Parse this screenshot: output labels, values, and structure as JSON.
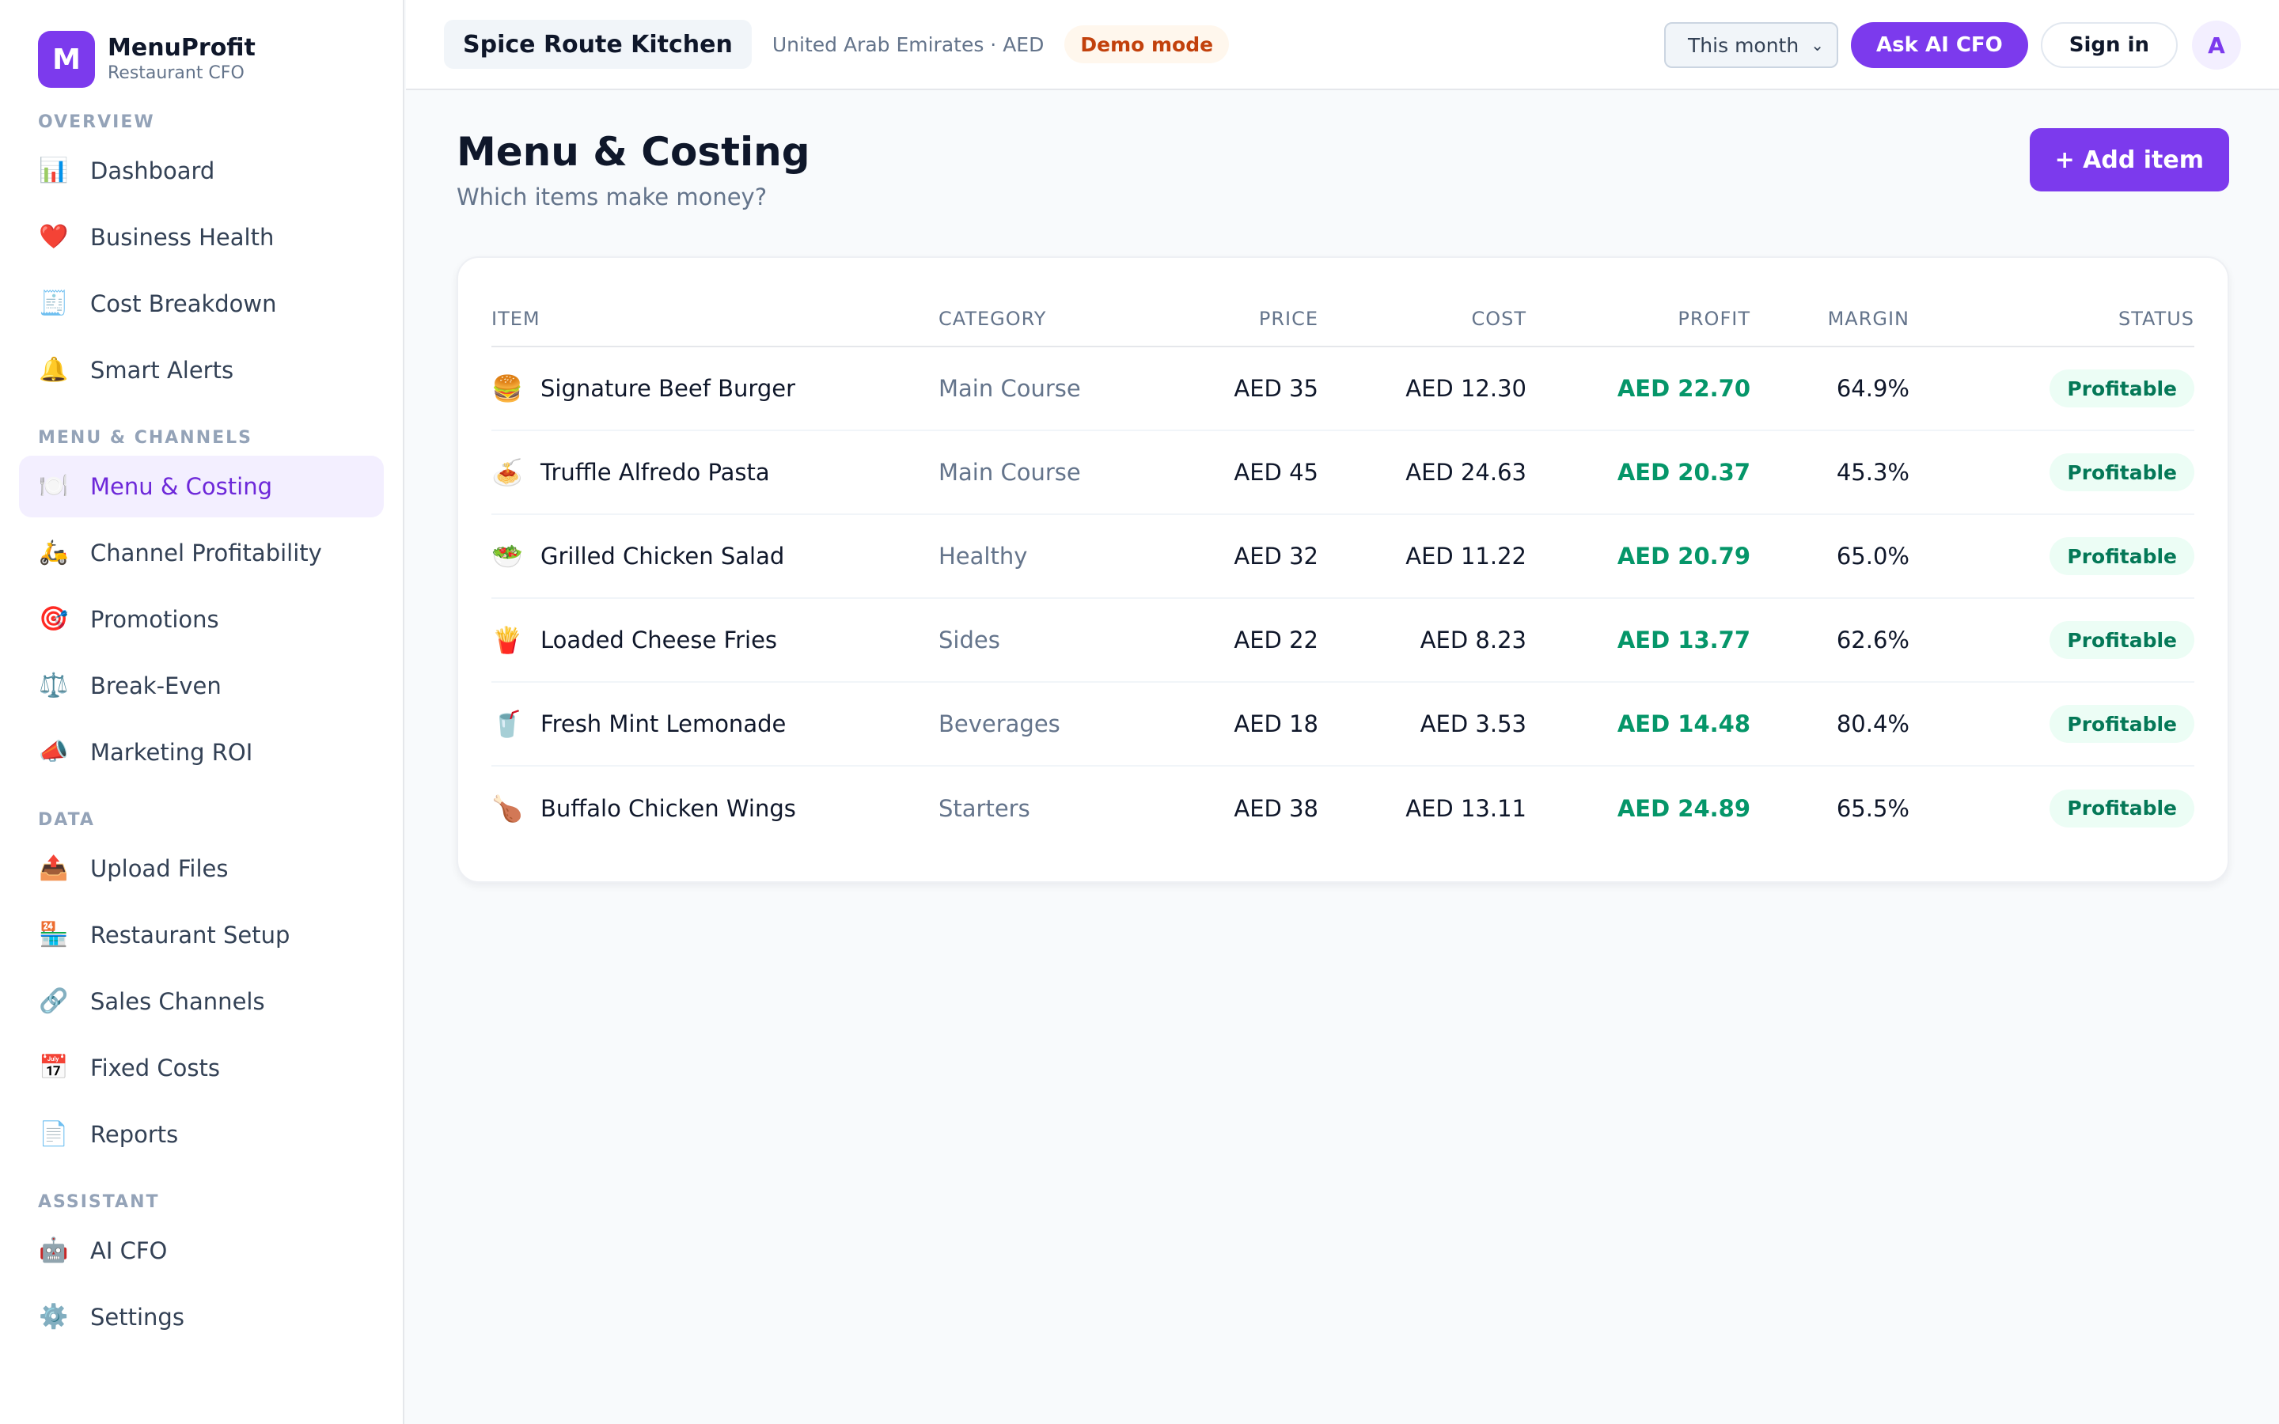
{
  "brand": {
    "logo_letter": "M",
    "name": "MenuProfit",
    "subtitle": "Restaurant CFO"
  },
  "sidebar": {
    "sections": [
      {
        "label": "OVERVIEW",
        "items": [
          {
            "icon": "📊",
            "icon_name": "bar-chart-icon",
            "label": "Dashboard"
          },
          {
            "icon": "❤️",
            "icon_name": "heart-icon",
            "label": "Business Health"
          },
          {
            "icon": "🧾",
            "icon_name": "receipt-icon",
            "label": "Cost Breakdown"
          },
          {
            "icon": "🔔",
            "icon_name": "bell-icon",
            "label": "Smart Alerts"
          }
        ]
      },
      {
        "label": "MENU & CHANNELS",
        "items": [
          {
            "icon": "🍽️",
            "icon_name": "plate-icon",
            "label": "Menu & Costing",
            "active": true
          },
          {
            "icon": "🛵",
            "icon_name": "scooter-icon",
            "label": "Channel Profitability"
          },
          {
            "icon": "🎯",
            "icon_name": "target-icon",
            "label": "Promotions"
          },
          {
            "icon": "⚖️",
            "icon_name": "scale-icon",
            "label": "Break-Even"
          },
          {
            "icon": "📣",
            "icon_name": "megaphone-icon",
            "label": "Marketing ROI"
          }
        ]
      },
      {
        "label": "DATA",
        "items": [
          {
            "icon": "📤",
            "icon_name": "upload-icon",
            "label": "Upload Files"
          },
          {
            "icon": "🏪",
            "icon_name": "store-icon",
            "label": "Restaurant Setup"
          },
          {
            "icon": "🔗",
            "icon_name": "link-icon",
            "label": "Sales Channels"
          },
          {
            "icon": "📅",
            "icon_name": "calendar-icon",
            "label": "Fixed Costs"
          },
          {
            "icon": "📄",
            "icon_name": "document-icon",
            "label": "Reports"
          }
        ]
      },
      {
        "label": "ASSISTANT",
        "items": [
          {
            "icon": "🤖",
            "icon_name": "robot-icon",
            "label": "AI CFO"
          },
          {
            "icon": "⚙️",
            "icon_name": "gear-icon",
            "label": "Settings"
          }
        ]
      }
    ]
  },
  "topbar": {
    "restaurant": "Spice Route Kitchen",
    "locale": "United Arab Emirates · AED",
    "demo_badge": "Demo mode",
    "period": "This month",
    "ask_ai": "Ask AI CFO",
    "sign_in": "Sign in",
    "avatar_letter": "A"
  },
  "page": {
    "title": "Menu & Costing",
    "subtitle": "Which items make money?",
    "add_button": "+ Add item"
  },
  "table": {
    "headers": {
      "item": "ITEM",
      "category": "CATEGORY",
      "price": "PRICE",
      "cost": "COST",
      "profit": "PROFIT",
      "margin": "MARGIN",
      "status": "STATUS"
    },
    "rows": [
      {
        "emoji": "🍔",
        "emoji_name": "burger-icon",
        "item": "Signature Beef Burger",
        "category": "Main Course",
        "price": "AED 35",
        "cost": "AED 12.30",
        "profit": "AED 22.70",
        "margin": "64.9%",
        "status": "Profitable"
      },
      {
        "emoji": "🍝",
        "emoji_name": "pasta-icon",
        "item": "Truffle Alfredo Pasta",
        "category": "Main Course",
        "price": "AED 45",
        "cost": "AED 24.63",
        "profit": "AED 20.37",
        "margin": "45.3%",
        "status": "Profitable"
      },
      {
        "emoji": "🥗",
        "emoji_name": "salad-icon",
        "item": "Grilled Chicken Salad",
        "category": "Healthy",
        "price": "AED 32",
        "cost": "AED 11.22",
        "profit": "AED 20.79",
        "margin": "65.0%",
        "status": "Profitable"
      },
      {
        "emoji": "🍟",
        "emoji_name": "fries-icon",
        "item": "Loaded Cheese Fries",
        "category": "Sides",
        "price": "AED 22",
        "cost": "AED 8.23",
        "profit": "AED 13.77",
        "margin": "62.6%",
        "status": "Profitable"
      },
      {
        "emoji": "🥤",
        "emoji_name": "drink-cup-icon",
        "item": "Fresh Mint Lemonade",
        "category": "Beverages",
        "price": "AED 18",
        "cost": "AED 3.53",
        "profit": "AED 14.48",
        "margin": "80.4%",
        "status": "Profitable"
      },
      {
        "emoji": "🍗",
        "emoji_name": "chicken-leg-icon",
        "item": "Buffalo Chicken Wings",
        "category": "Starters",
        "price": "AED 38",
        "cost": "AED 13.11",
        "profit": "AED 24.89",
        "margin": "65.5%",
        "status": "Profitable"
      }
    ]
  },
  "colors": {
    "accent": "#7c3aed",
    "profit": "#059669",
    "demo": "#c2410c"
  }
}
